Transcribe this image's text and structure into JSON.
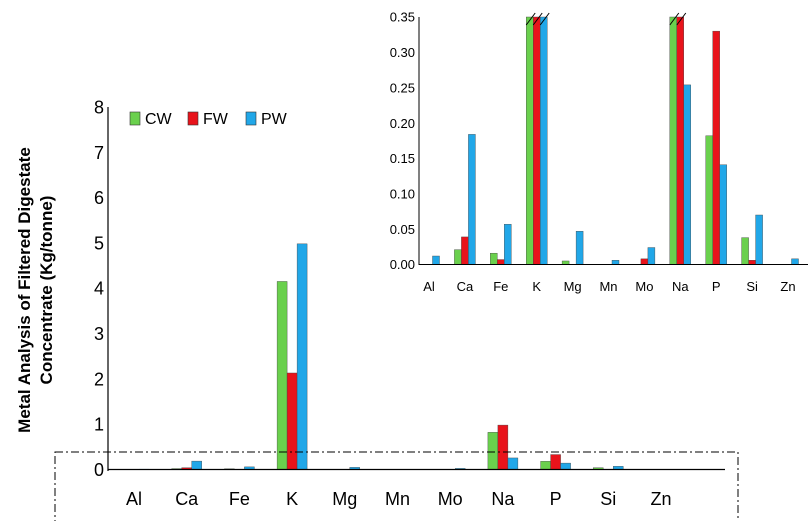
{
  "chart_data": [
    {
      "type": "bar",
      "id": "main",
      "categories": [
        "Al",
        "Ca",
        "Fe",
        "K",
        "Mg",
        "Mn",
        "Mo",
        "Na",
        "P",
        "Si",
        "Zn"
      ],
      "series": [
        {
          "name": "CW",
          "color": "#6ad04d",
          "values": [
            0.0,
            0.02,
            0.015,
            4.15,
            0.005,
            0.0,
            0.0,
            0.82,
            0.18,
            0.04,
            0.0
          ]
        },
        {
          "name": "FW",
          "color": "#e8131b",
          "values": [
            0.0,
            0.04,
            0.007,
            2.13,
            0.0,
            0.0,
            0.008,
            0.98,
            0.33,
            0.006,
            0.0
          ]
        },
        {
          "name": "PW",
          "color": "#21a7e8",
          "values": [
            0.012,
            0.185,
            0.058,
            4.98,
            0.047,
            0.006,
            0.024,
            0.255,
            0.141,
            0.07,
            0.008
          ]
        }
      ],
      "ylabel_lines": [
        "Metal Analysis of  Filtered Digestate",
        "Concentrate  (Kg/tonne)"
      ],
      "ylim": [
        0,
        8
      ],
      "yticks": [
        "0",
        "1",
        "2",
        "3",
        "4",
        "5",
        "6",
        "7",
        "8"
      ],
      "legend": "top-left",
      "grid": false
    },
    {
      "type": "bar",
      "id": "inset",
      "categories": [
        "Al",
        "Ca",
        "Fe",
        "K",
        "Mg",
        "Mn",
        "Mo",
        "Na",
        "P",
        "Si",
        "Zn"
      ],
      "series": [
        {
          "name": "CW",
          "color": "#6ad04d",
          "values": [
            0.0,
            0.021,
            0.016,
            0.35,
            0.005,
            0.0,
            0.0,
            0.35,
            0.182,
            0.038,
            0.0
          ]
        },
        {
          "name": "FW",
          "color": "#e8131b",
          "values": [
            0.0,
            0.039,
            0.007,
            0.35,
            0.0,
            0.0,
            0.008,
            0.35,
            0.33,
            0.006,
            0.0
          ]
        },
        {
          "name": "PW",
          "color": "#21a7e8",
          "values": [
            0.012,
            0.184,
            0.057,
            0.35,
            0.047,
            0.006,
            0.024,
            0.254,
            0.141,
            0.07,
            0.008
          ]
        }
      ],
      "broken_bars": [
        "K",
        "Na"
      ],
      "ylim": [
        0,
        0.35
      ],
      "yticks": [
        "0.00",
        "0.05",
        "0.10",
        "0.15",
        "0.20",
        "0.25",
        "0.30",
        "0.35"
      ],
      "grid": false
    }
  ]
}
